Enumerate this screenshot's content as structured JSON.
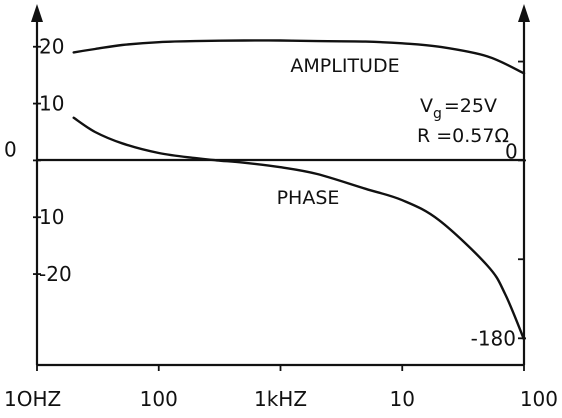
{
  "chart_data": {
    "type": "line",
    "title": "",
    "x_scale": "log",
    "x_range_hz": [
      10,
      100000
    ],
    "x_tick_labels": [
      {
        "label": "1OHZ",
        "hz": 10
      },
      {
        "label": "100",
        "hz": 100
      },
      {
        "label": "1kHZ",
        "hz": 1000
      },
      {
        "label": "10",
        "hz": 10000
      },
      {
        "label": "100",
        "hz": 100000
      }
    ],
    "left_axis": {
      "ylim": [
        -36,
        24
      ],
      "tick_labels": [
        {
          "label": "20",
          "value": 20
        },
        {
          "label": "10",
          "value": 10
        },
        {
          "label": "0",
          "value": 0
        },
        {
          "label": "10",
          "value": -10
        },
        {
          "label": "-20",
          "value": -20
        }
      ]
    },
    "right_axis": {
      "ylim": [
        -207,
        138
      ],
      "tick_labels": [
        {
          "label": "0",
          "value": 0
        },
        {
          "label": "-180",
          "value": -180
        }
      ]
    },
    "series": [
      {
        "name": "AMPLITUDE",
        "axis": "left",
        "x": [
          20,
          30,
          50,
          100,
          200,
          500,
          1000,
          2000,
          5000,
          10000,
          20000,
          50000,
          100000
        ],
        "y": [
          19.0,
          19.6,
          20.3,
          20.8,
          21.0,
          21.1,
          21.1,
          21.0,
          20.9,
          20.6,
          20.0,
          18.3,
          15.3
        ]
      },
      {
        "name": "PHASE",
        "axis": "left",
        "x": [
          20,
          30,
          50,
          100,
          200,
          300,
          500,
          1000,
          2000,
          5000,
          10000,
          20000,
          50000,
          70000,
          100000
        ],
        "y": [
          7.5,
          5.0,
          3.0,
          1.3,
          0.4,
          0.0,
          -0.4,
          -1.2,
          -2.4,
          -5.0,
          -7.0,
          -10.5,
          -18.5,
          -23.5,
          -31.5
        ]
      }
    ],
    "annotations": [
      {
        "text": "AMPLITUDE",
        "near": "top-right"
      },
      {
        "text": "PHASE",
        "near": "center"
      }
    ],
    "parameters": {
      "vg_label": "V",
      "vg_subscript": "g",
      "vg_value": "=25V",
      "r_text": "R =0.57Ω"
    },
    "grid": false,
    "legend": "none"
  }
}
